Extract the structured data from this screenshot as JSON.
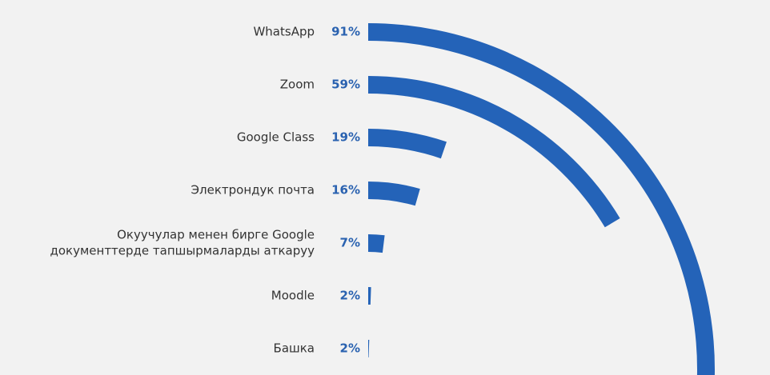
{
  "chart_data": {
    "type": "radial_bar",
    "categories": [
      "WhatsApp",
      "Zoom",
      "Google Class",
      "Электрондук почта",
      [
        "Окуучулар менен бирге Google",
        "документтерде тапшырмаларды аткаруу"
      ],
      "Moodle",
      "Башка"
    ],
    "values": [
      91,
      59,
      19,
      16,
      7,
      2,
      2
    ],
    "value_labels": [
      "91%",
      "59%",
      "19%",
      "16%",
      "7%",
      "2%",
      "2%"
    ],
    "color": "#2463b8"
  }
}
